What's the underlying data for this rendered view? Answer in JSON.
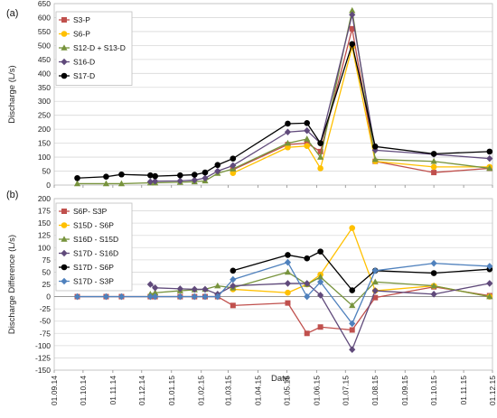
{
  "chart_data": [
    {
      "type": "line",
      "panel_label": "(a)",
      "ylabel": "Discharge (L/s)",
      "ylim": [
        0,
        650
      ],
      "ytick_step": 50,
      "xlim": [
        "2014-09-01",
        "2015-12-01"
      ],
      "grid": true,
      "legend": "top-left",
      "series": [
        {
          "name": "S3-P",
          "color": "#C0504D",
          "marker": "square",
          "x": [
            "2015-03-06",
            "2015-05-02",
            "2015-05-22",
            "2015-06-05",
            "2015-07-08",
            "2015-08-01",
            "2015-10-01",
            "2015-11-28"
          ],
          "y": [
            55,
            145,
            150,
            120,
            560,
            85,
            45,
            60
          ]
        },
        {
          "name": "S6-P",
          "color": "#FFC000",
          "marker": "circle",
          "x": [
            "2015-03-06",
            "2015-05-02",
            "2015-05-22",
            "2015-06-05",
            "2015-07-08",
            "2015-08-01",
            "2015-10-01",
            "2015-11-28"
          ],
          "y": [
            43,
            135,
            140,
            60,
            495,
            85,
            65,
            65
          ]
        },
        {
          "name": "S12-D + S13-D",
          "color": "#77933C",
          "marker": "triangle",
          "x": [
            "2014-09-25",
            "2014-10-25",
            "2014-11-10",
            "2014-12-10",
            "2014-12-15",
            "2015-01-10",
            "2015-01-25",
            "2015-02-05",
            "2015-02-18",
            "2015-03-06",
            "2015-05-02",
            "2015-05-22",
            "2015-06-05",
            "2015-07-08",
            "2015-08-01",
            "2015-10-01",
            "2015-11-28"
          ],
          "y": [
            5,
            5,
            5,
            8,
            8,
            10,
            12,
            15,
            42,
            58,
            150,
            165,
            100,
            625,
            92,
            85,
            60
          ]
        },
        {
          "name": "S16-D",
          "color": "#604A7B",
          "marker": "diamond",
          "x": [
            "2014-12-10",
            "2014-12-15",
            "2015-01-10",
            "2015-01-25",
            "2015-02-05",
            "2015-02-18",
            "2015-03-06",
            "2015-05-02",
            "2015-05-22",
            "2015-06-05",
            "2015-07-08",
            "2015-08-01",
            "2015-10-01",
            "2015-11-28"
          ],
          "y": [
            12,
            14,
            15,
            18,
            25,
            50,
            70,
            190,
            195,
            150,
            610,
            125,
            110,
            95
          ]
        },
        {
          "name": "S17-D",
          "color": "#000000",
          "marker": "circle",
          "x": [
            "2014-09-25",
            "2014-10-25",
            "2014-11-10",
            "2014-12-10",
            "2014-12-15",
            "2015-01-10",
            "2015-01-25",
            "2015-02-05",
            "2015-02-18",
            "2015-03-06",
            "2015-05-02",
            "2015-05-22",
            "2015-06-05",
            "2015-07-08",
            "2015-08-01",
            "2015-10-01",
            "2015-11-28"
          ],
          "y": [
            25,
            30,
            38,
            35,
            32,
            35,
            37,
            45,
            72,
            95,
            220,
            222,
            150,
            505,
            138,
            112,
            120
          ]
        }
      ]
    },
    {
      "type": "line",
      "panel_label": "(b)",
      "ylabel": "Discharge Difference (L/s)",
      "xlabel": "Date",
      "ylim": [
        -150,
        200
      ],
      "ytick_step": 25,
      "xlim": [
        "2014-09-01",
        "2015-12-01"
      ],
      "grid": true,
      "legend": "top-left",
      "xticks": [
        "01.09.14",
        "01.10.14",
        "01.11.14",
        "01.12.14",
        "01.01.15",
        "01.02.15",
        "01.03.15",
        "01.04.15",
        "01.05.15",
        "01.06.15",
        "01.07.15",
        "01.08.15",
        "01.09.15",
        "01.10.15",
        "01.11.15",
        "01.12.15"
      ],
      "series": [
        {
          "name": "S6P- S3P",
          "color": "#C0504D",
          "marker": "square",
          "x": [
            "2014-09-25",
            "2014-10-25",
            "2014-11-10",
            "2014-12-10",
            "2014-12-15",
            "2015-01-10",
            "2015-01-25",
            "2015-02-05",
            "2015-02-18",
            "2015-03-06",
            "2015-05-02",
            "2015-05-22",
            "2015-06-05",
            "2015-07-08",
            "2015-08-01",
            "2015-10-01",
            "2015-11-28"
          ],
          "y": [
            0,
            0,
            0,
            0,
            0,
            0,
            0,
            0,
            0,
            -18,
            -13,
            -75,
            -62,
            -68,
            -2,
            20,
            2
          ]
        },
        {
          "name": "S15D - S6P",
          "color": "#FFC000",
          "marker": "circle",
          "x": [
            "2015-03-06",
            "2015-05-02",
            "2015-05-22",
            "2015-06-05",
            "2015-07-08",
            "2015-08-01",
            "2015-10-01",
            "2015-11-28"
          ],
          "y": [
            15,
            8,
            25,
            45,
            140,
            12,
            22,
            0
          ]
        },
        {
          "name": "S16D - S15D",
          "color": "#77933C",
          "marker": "triangle",
          "x": [
            "2014-12-10",
            "2014-12-15",
            "2015-01-10",
            "2015-01-25",
            "2015-02-05",
            "2015-02-18",
            "2015-03-06",
            "2015-05-02",
            "2015-05-22",
            "2015-06-05",
            "2015-07-08",
            "2015-08-01",
            "2015-10-01",
            "2015-11-28"
          ],
          "y": [
            5,
            8,
            12,
            14,
            15,
            22,
            18,
            50,
            25,
            40,
            -18,
            30,
            22,
            0
          ]
        },
        {
          "name": "S17D - S16D",
          "color": "#604A7B",
          "marker": "diamond",
          "x": [
            "2014-12-10",
            "2014-12-15",
            "2015-01-10",
            "2015-01-25",
            "2015-02-05",
            "2015-02-18",
            "2015-03-06",
            "2015-05-02",
            "2015-05-22",
            "2015-06-05",
            "2015-07-08",
            "2015-08-01",
            "2015-10-01",
            "2015-11-28"
          ],
          "y": [
            25,
            18,
            16,
            15,
            15,
            5,
            22,
            27,
            27,
            3,
            -108,
            12,
            5,
            27
          ]
        },
        {
          "name": "S17D - S6P",
          "color": "#000000",
          "marker": "circle",
          "x": [
            "2015-03-06",
            "2015-05-02",
            "2015-05-22",
            "2015-06-05",
            "2015-07-08",
            "2015-08-01",
            "2015-10-01",
            "2015-11-28"
          ],
          "y": [
            53,
            85,
            78,
            92,
            13,
            53,
            48,
            56
          ]
        },
        {
          "name": "S17D - S3P",
          "color": "#4F81BD",
          "marker": "diamond",
          "x": [
            "2014-09-25",
            "2014-10-25",
            "2014-11-10",
            "2014-12-10",
            "2014-12-15",
            "2015-01-10",
            "2015-01-25",
            "2015-02-05",
            "2015-02-18",
            "2015-03-06",
            "2015-05-02",
            "2015-05-22",
            "2015-06-05",
            "2015-07-08",
            "2015-08-01",
            "2015-10-01",
            "2015-11-28"
          ],
          "y": [
            0,
            0,
            0,
            0,
            0,
            0,
            0,
            0,
            0,
            35,
            70,
            0,
            30,
            -55,
            53,
            68,
            62
          ]
        }
      ]
    }
  ]
}
